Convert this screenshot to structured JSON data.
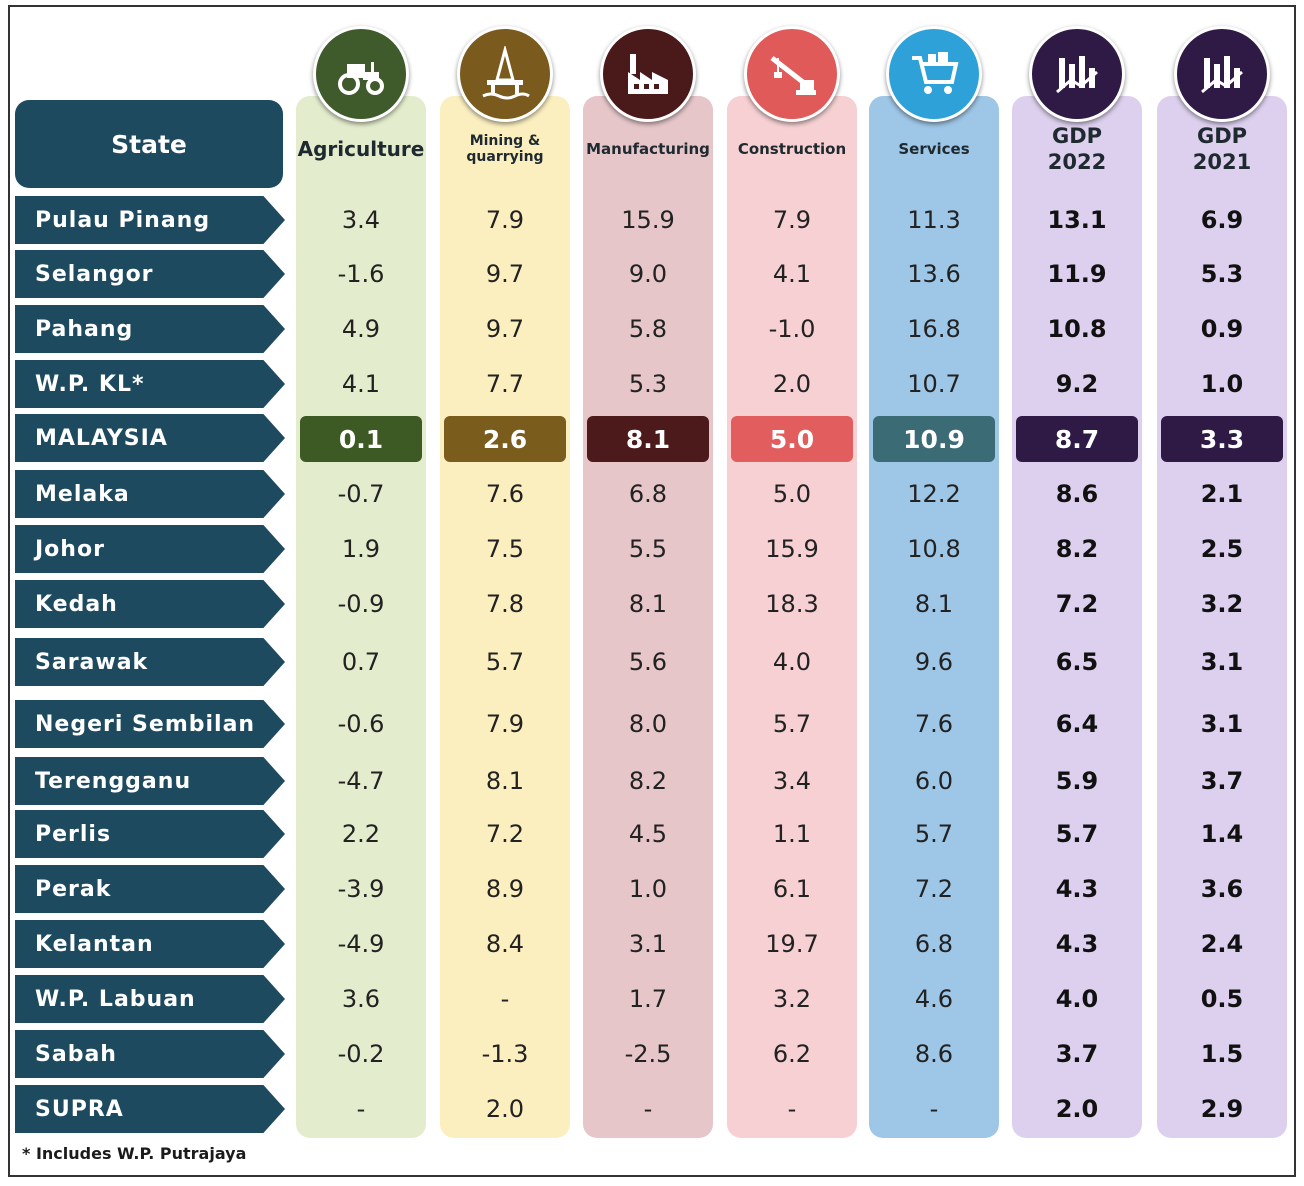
{
  "header": {
    "state_label": "State",
    "columns": [
      {
        "id": "agri",
        "label": "Agriculture",
        "icon": "tractor-icon",
        "color": "#3f5a2b",
        "bg": "#e3eccc"
      },
      {
        "id": "mining",
        "label": "Mining & quarrying",
        "icon": "oil-rig-icon",
        "color": "#7a5a1d",
        "bg": "#fbefc0"
      },
      {
        "id": "manu",
        "label": "Manufacturing",
        "icon": "factory-icon",
        "color": "#4a1a1a",
        "bg": "#e6c6c9"
      },
      {
        "id": "cons",
        "label": "Construction",
        "icon": "crane-icon",
        "color": "#e05a5a",
        "bg": "#f6d0d2"
      },
      {
        "id": "serv",
        "label": "Services",
        "icon": "shopping-cart-icon",
        "color": "#2ea2d8",
        "bg": "#9ec6e6"
      },
      {
        "id": "gdp22",
        "label": "GDP 2022",
        "icon": "bar-chart-icon",
        "color": "#2e1a45",
        "bg": "#ddd0ee"
      },
      {
        "id": "gdp21",
        "label": "GDP 2021",
        "icon": "bar-chart-icon",
        "color": "#2e1a45",
        "bg": "#ddd0ee"
      }
    ]
  },
  "highlight_colors": {
    "agri": "#3e5a24",
    "mining": "#7a5c1c",
    "manu": "#4c1a1a",
    "cons": "#e25d5d",
    "serv": "#3b6b75",
    "gdp22": "#2e1a45",
    "gdp21": "#2e1a45"
  },
  "chart_data": {
    "type": "table",
    "columns": [
      "Agriculture",
      "Mining & quarrying",
      "Manufacturing",
      "Construction",
      "Services",
      "GDP 2022",
      "GDP 2021"
    ],
    "rows": [
      {
        "state": "Pulau Pinang",
        "values": [
          "3.4",
          "7.9",
          "15.9",
          "7.9",
          "11.3",
          "13.1",
          "6.9"
        ]
      },
      {
        "state": "Selangor",
        "values": [
          "-1.6",
          "9.7",
          "9.0",
          "4.1",
          "13.6",
          "11.9",
          "5.3"
        ]
      },
      {
        "state": "Pahang",
        "values": [
          "4.9",
          "9.7",
          "5.8",
          "-1.0",
          "16.8",
          "10.8",
          "0.9"
        ]
      },
      {
        "state": "W.P. KL*",
        "values": [
          "4.1",
          "7.7",
          "5.3",
          "2.0",
          "10.7",
          "9.2",
          "1.0"
        ]
      },
      {
        "state": "MALAYSIA",
        "values": [
          "0.1",
          "2.6",
          "8.1",
          "5.0",
          "10.9",
          "8.7",
          "3.3"
        ],
        "highlight": true
      },
      {
        "state": "Melaka",
        "values": [
          "-0.7",
          "7.6",
          "6.8",
          "5.0",
          "12.2",
          "8.6",
          "2.1"
        ]
      },
      {
        "state": "Johor",
        "values": [
          "1.9",
          "7.5",
          "5.5",
          "15.9",
          "10.8",
          "8.2",
          "2.5"
        ]
      },
      {
        "state": "Kedah",
        "values": [
          "-0.9",
          "7.8",
          "8.1",
          "18.3",
          "8.1",
          "7.2",
          "3.2"
        ]
      },
      {
        "state": "Sarawak",
        "values": [
          "0.7",
          "5.7",
          "5.6",
          "4.0",
          "9.6",
          "6.5",
          "3.1"
        ]
      },
      {
        "state": "Negeri Sembilan",
        "values": [
          "-0.6",
          "7.9",
          "8.0",
          "5.7",
          "7.6",
          "6.4",
          "3.1"
        ]
      },
      {
        "state": "Terengganu",
        "values": [
          "-4.7",
          "8.1",
          "8.2",
          "3.4",
          "6.0",
          "5.9",
          "3.7"
        ]
      },
      {
        "state": "Perlis",
        "values": [
          "2.2",
          "7.2",
          "4.5",
          "1.1",
          "5.7",
          "5.7",
          "1.4"
        ]
      },
      {
        "state": "Perak",
        "values": [
          "-3.9",
          "8.9",
          "1.0",
          "6.1",
          "7.2",
          "4.3",
          "3.6"
        ]
      },
      {
        "state": "Kelantan",
        "values": [
          "-4.9",
          "8.4",
          "3.1",
          "19.7",
          "6.8",
          "4.3",
          "2.4"
        ]
      },
      {
        "state": "W.P. Labuan",
        "values": [
          "3.6",
          "-",
          "1.7",
          "3.2",
          "4.6",
          "4.0",
          "0.5"
        ]
      },
      {
        "state": "Sabah",
        "values": [
          "-0.2",
          "-1.3",
          "-2.5",
          "6.2",
          "8.6",
          "3.7",
          "1.5"
        ]
      },
      {
        "state": "SUPRA",
        "values": [
          "-",
          "2.0",
          "-",
          "-",
          "-",
          "2.0",
          "2.9"
        ]
      }
    ]
  },
  "footnote": "* Includes W.P. Putrajaya"
}
